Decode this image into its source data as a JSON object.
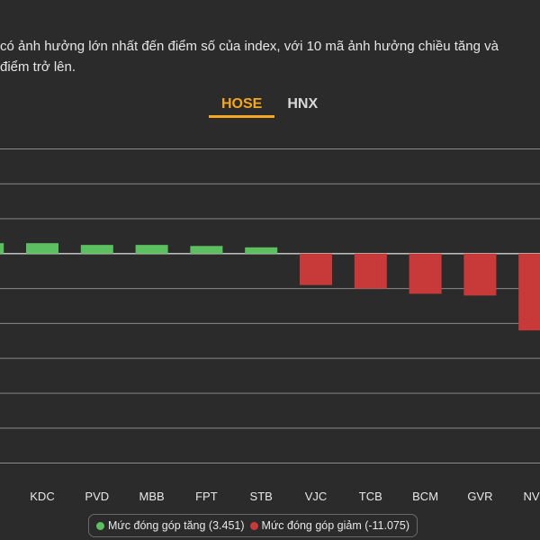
{
  "description": {
    "line1": "có ảnh hưởng lớn nhất đến điểm số của index, với 10 mã ảnh hưởng chiều tăng và",
    "line2": "điểm trở lên."
  },
  "tabs": {
    "items": [
      {
        "label": "HOSE",
        "active": true
      },
      {
        "label": "HNX",
        "active": false
      }
    ]
  },
  "legend": {
    "positive_label": "Mức đóng góp tăng (3.451)",
    "negative_label": "Mức đóng góp giảm (-11.075)"
  },
  "colors": {
    "positive": "#5cbf60",
    "negative": "#c8393a",
    "active_tab": "#f5a623",
    "background": "#2b2b2b",
    "grid": "#8a8a8a"
  },
  "chart_data": {
    "type": "bar",
    "categories": [
      "KDC",
      "PVD",
      "MBB",
      "FPT",
      "STB",
      "VJC",
      "TCB",
      "BCM",
      "GVR",
      "NVL"
    ],
    "values": [
      0.3,
      0.25,
      0.25,
      0.22,
      0.18,
      -0.9,
      -1.0,
      -1.15,
      -1.2,
      -2.2
    ],
    "partial_left_bar_value": 0.3,
    "ylim": [
      -6.4,
      3.4
    ],
    "grid": true,
    "legend_position": "bottom"
  }
}
